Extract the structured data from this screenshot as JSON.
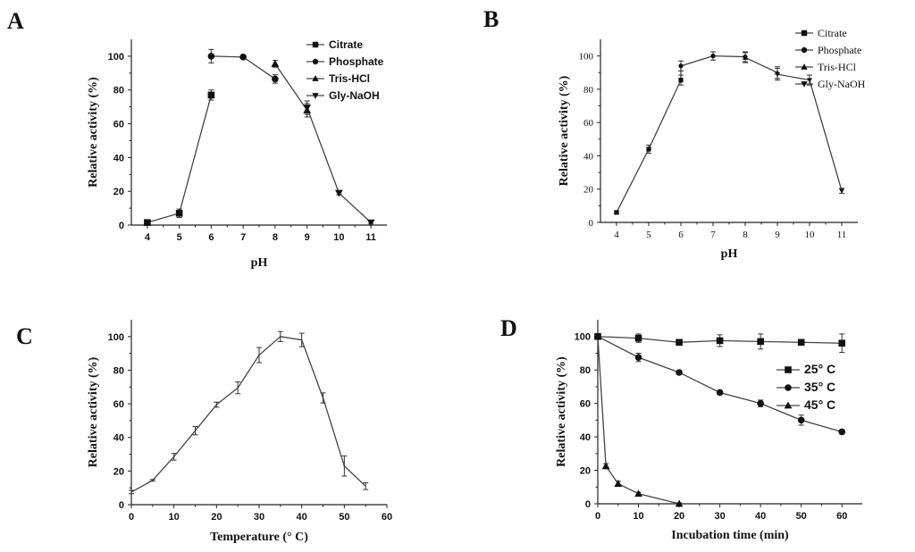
{
  "chart_data": [
    {
      "panel": "A",
      "type": "line",
      "xlabel": "pH",
      "ylabel": "Relative activity (%)",
      "xlim": [
        3.5,
        11.5
      ],
      "ylim": [
        0,
        110
      ],
      "xticks": [
        4,
        5,
        6,
        7,
        8,
        9,
        10,
        11
      ],
      "yticks": [
        0,
        20,
        40,
        60,
        80,
        100
      ],
      "legend_position": "top-right",
      "connect_series": true,
      "series": [
        {
          "name": "Citrate",
          "marker": "square",
          "x": [
            4,
            5,
            6
          ],
          "y": [
            1.5,
            7,
            77
          ],
          "err": [
            0.8,
            2.5,
            3
          ]
        },
        {
          "name": "Phosphate",
          "marker": "circle",
          "x": [
            6,
            7,
            8
          ],
          "y": [
            100,
            99.5,
            86.5
          ],
          "err": [
            4,
            0.8,
            2.5
          ]
        },
        {
          "name": "Tris-HCl",
          "marker": "triangle-up",
          "x": [
            8,
            9
          ],
          "y": [
            95.5,
            68
          ],
          "err": [
            2,
            4
          ]
        },
        {
          "name": "Gly-NaOH",
          "marker": "triangle-down",
          "x": [
            9,
            10,
            11
          ],
          "y": [
            69.5,
            19,
            1.5
          ],
          "err": [
            4,
            1,
            0.8
          ]
        }
      ]
    },
    {
      "panel": "B",
      "type": "line",
      "xlabel": "pH",
      "ylabel": "Relative activity (%)",
      "xlim": [
        3.5,
        11.5
      ],
      "ylim": [
        0,
        110
      ],
      "xticks": [
        4,
        5,
        6,
        7,
        8,
        9,
        10,
        11
      ],
      "yticks": [
        0,
        20,
        40,
        60,
        80,
        100
      ],
      "legend_position": "top-right",
      "connect_series": false,
      "connected_line": {
        "x": [
          4,
          5,
          6,
          6,
          7,
          8,
          8,
          9,
          9,
          10,
          11
        ],
        "y": [
          6,
          44,
          85.5,
          94,
          100,
          99.5,
          99,
          90,
          89,
          85.5,
          19
        ]
      },
      "series": [
        {
          "name": "Citrate",
          "marker": "square",
          "x": [
            4,
            5,
            6
          ],
          "y": [
            6,
            44,
            85.5
          ],
          "err": [
            0.8,
            2.5,
            3
          ]
        },
        {
          "name": "Phosphate",
          "marker": "circle",
          "x": [
            6,
            7,
            8
          ],
          "y": [
            94,
            100,
            99.5
          ],
          "err": [
            3,
            2.5,
            3
          ]
        },
        {
          "name": "Tris-HCl",
          "marker": "triangle-up",
          "x": [
            8,
            9
          ],
          "y": [
            99,
            90
          ],
          "err": [
            3,
            3.5
          ]
        },
        {
          "name": "Gly-NaOH",
          "marker": "triangle-down",
          "x": [
            9,
            10,
            11
          ],
          "y": [
            89,
            85.5,
            19
          ],
          "err": [
            3.5,
            3,
            1.5
          ]
        }
      ]
    },
    {
      "panel": "C",
      "type": "line",
      "xlabel": "Temperature (° C)",
      "ylabel": "Relative activity (%)",
      "xlim": [
        0,
        60
      ],
      "ylim": [
        0,
        110
      ],
      "xticks": [
        0,
        10,
        20,
        30,
        40,
        50,
        60
      ],
      "yticks": [
        0,
        20,
        40,
        60,
        80,
        100
      ],
      "connect_series": true,
      "series": [
        {
          "name": "",
          "marker": "none",
          "x": [
            0,
            5,
            10,
            15,
            20,
            25,
            30,
            35,
            40,
            45,
            50,
            55
          ],
          "y": [
            7.5,
            14.5,
            28.5,
            44,
            59.5,
            69.5,
            89,
            100,
            98,
            63.5,
            23,
            11
          ],
          "err": [
            1,
            0.5,
            2,
            2.5,
            1.5,
            3.5,
            4.5,
            3,
            4,
            3,
            6,
            2
          ]
        }
      ]
    },
    {
      "panel": "D",
      "type": "line",
      "xlabel": "Incubation time (min)",
      "ylabel": "Relative activity (%)",
      "xlim": [
        0,
        65
      ],
      "ylim": [
        0,
        110
      ],
      "xticks": [
        0,
        10,
        20,
        30,
        40,
        50,
        60
      ],
      "yticks": [
        0,
        20,
        40,
        60,
        80,
        100
      ],
      "legend_position": "right",
      "connect_series": true,
      "series": [
        {
          "name": "25° C",
          "marker": "square",
          "x": [
            0,
            10,
            20,
            30,
            40,
            50,
            60
          ],
          "y": [
            100,
            99,
            96.5,
            97.5,
            97,
            96.5,
            96
          ],
          "err": [
            0.5,
            2.5,
            0.8,
            3.5,
            4.5,
            0.8,
            5.5
          ]
        },
        {
          "name": "35° C",
          "marker": "circle",
          "x": [
            0,
            10,
            20,
            30,
            40,
            50,
            60
          ],
          "y": [
            100,
            87.5,
            78.5,
            66.5,
            60,
            50,
            43
          ],
          "err": [
            0.5,
            2.5,
            0.8,
            0.8,
            2,
            3,
            1
          ]
        },
        {
          "name": "45° C",
          "marker": "triangle-up",
          "x": [
            0,
            2,
            5,
            10,
            20
          ],
          "y": [
            100,
            22.5,
            12,
            6,
            0
          ],
          "err": [
            0.5,
            1.5,
            1.5,
            0.8,
            0.5
          ]
        }
      ]
    }
  ]
}
